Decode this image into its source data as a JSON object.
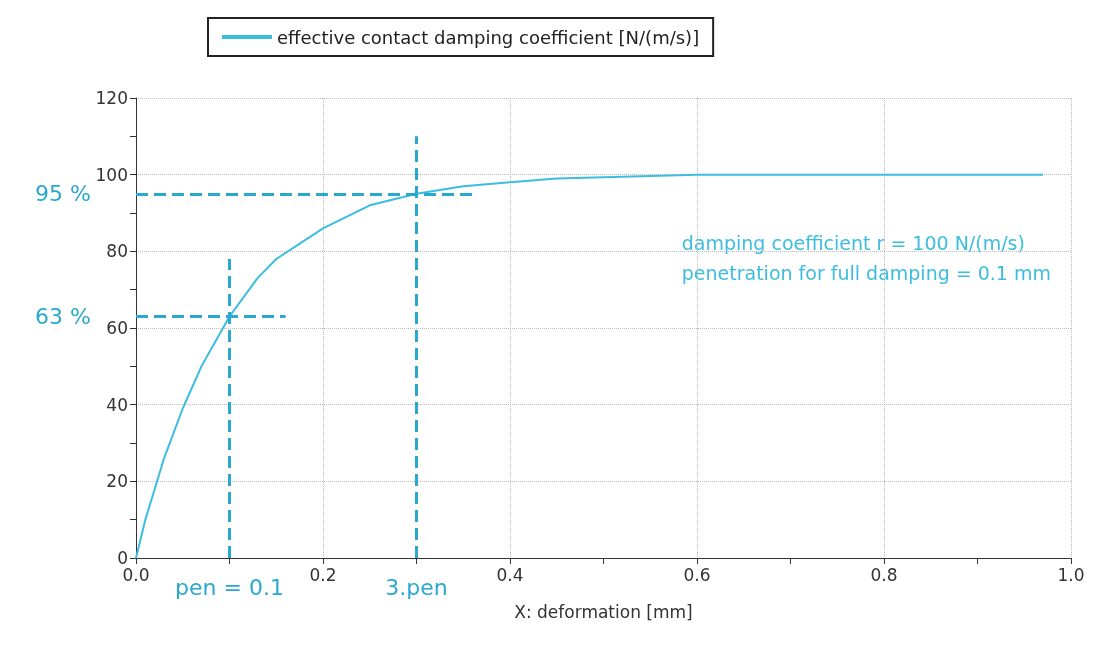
{
  "chart_data": {
    "type": "line",
    "xlabel": "X: deformation [mm]",
    "x": [
      0,
      0.01,
      0.02,
      0.03,
      0.05,
      0.07,
      0.1,
      0.13,
      0.15,
      0.2,
      0.25,
      0.3,
      0.35,
      0.4,
      0.45,
      0.5,
      0.6,
      0.7,
      0.8,
      0.97
    ],
    "series": [
      {
        "name": "effective contact damping coefficient [N/(m/s)]",
        "color": "#3bbde0",
        "values": [
          0,
          10,
          18,
          26,
          39,
          50,
          63,
          73,
          78,
          86,
          92,
          95,
          97,
          98,
          99,
          99.3,
          100,
          100,
          100,
          100
        ]
      }
    ],
    "xlim": [
      0,
      1
    ],
    "xticks": [
      {
        "value": 0,
        "label": "0.0"
      },
      {
        "value": 0.1,
        "label": null
      },
      0.2,
      {
        "value": 0.3,
        "label": null
      },
      0.4,
      {
        "value": 0.5,
        "label": null
      },
      0.6,
      {
        "value": 0.7,
        "label": null
      },
      0.8,
      {
        "value": 0.9,
        "label": null
      },
      {
        "value": 1,
        "label": "1.0"
      }
    ],
    "ylim": [
      0,
      120
    ],
    "yticks": [
      0,
      {
        "value": 10,
        "label": null
      },
      20,
      {
        "value": 30,
        "label": null
      },
      40,
      {
        "value": 50,
        "label": null
      },
      60,
      {
        "value": 70,
        "label": null
      },
      80,
      {
        "value": 90,
        "label": null
      },
      100,
      {
        "value": 110,
        "label": null
      },
      120
    ],
    "ref_lines": [
      {
        "axis": "y",
        "value": 95,
        "label": "95 %",
        "color": "#29a9cf",
        "line_style": "dashed"
      },
      {
        "axis": "y",
        "value": 63,
        "label": "63 %",
        "color": "#29a9cf",
        "line_style": "dashed"
      },
      {
        "axis": "x",
        "value": 0.1,
        "label": "pen = 0.1",
        "color": "#29a9cf",
        "line_style": "dashed"
      },
      {
        "axis": "x",
        "value": 0.3,
        "label": "3.pen",
        "color": "#29a9cf",
        "line_style": "dashed"
      }
    ],
    "annotations": [
      "damping coefficient r = 100 N/(m/s)",
      "penetration for full damping = 0.1 mm"
    ],
    "grid": true,
    "legend": "top left",
    "marker": "none",
    "line_style": "solid"
  }
}
